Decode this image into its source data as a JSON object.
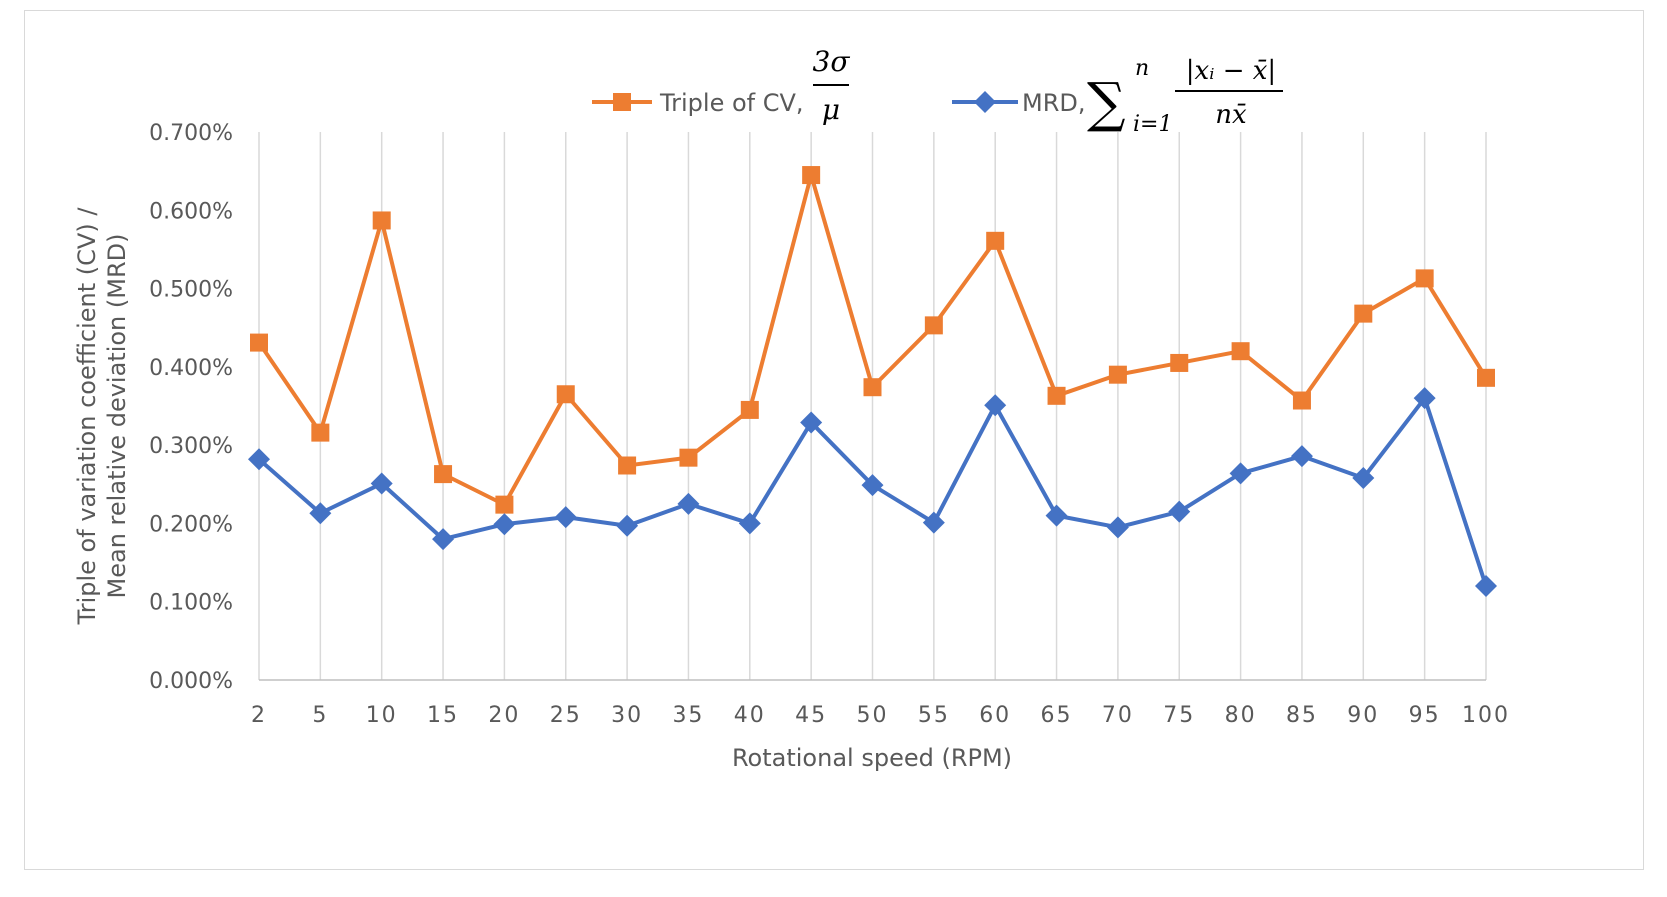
{
  "chart_data": {
    "type": "line",
    "title": "",
    "xlabel": "Rotational speed (RPM)",
    "ylabel": [
      "Triple of variation coefficient (CV) /",
      "Mean relative deviation (MRD)"
    ],
    "categories": [
      "2",
      "5",
      "10",
      "15",
      "20",
      "25",
      "30",
      "35",
      "40",
      "45",
      "50",
      "55",
      "60",
      "65",
      "70",
      "75",
      "80",
      "85",
      "90",
      "95",
      "100"
    ],
    "ylim": [
      0,
      0.7
    ],
    "ytick_labels": [
      "0.000%",
      "0.100%",
      "0.200%",
      "0.300%",
      "0.400%",
      "0.500%",
      "0.600%",
      "0.700%"
    ],
    "grid": "vertical",
    "legend_position": "top",
    "series": [
      {
        "name": "Triple of CV,",
        "formula": "3σ/μ",
        "formula_numerator": "3σ",
        "formula_denominator": "μ",
        "color": "#ED7D31",
        "marker": "square",
        "values": [
          0.431,
          0.316,
          0.587,
          0.263,
          0.224,
          0.365,
          0.274,
          0.284,
          0.345,
          0.645,
          0.374,
          0.453,
          0.561,
          0.363,
          0.39,
          0.405,
          0.42,
          0.357,
          0.468,
          0.513,
          0.386
        ]
      },
      {
        "name": "MRD,",
        "formula": "Σ_{i=1}^{n} |x_i − x̄| / (n x̄)",
        "formula_sum": "∑",
        "formula_sum_upper": "n",
        "formula_sum_lower": "i=1",
        "formula_numerator": "|xᵢ − x̄|",
        "formula_denominator": "nx̄",
        "color": "#4472C4",
        "marker": "diamond",
        "values": [
          0.282,
          0.213,
          0.251,
          0.18,
          0.199,
          0.208,
          0.197,
          0.225,
          0.2,
          0.329,
          0.249,
          0.201,
          0.351,
          0.21,
          0.195,
          0.215,
          0.264,
          0.286,
          0.258,
          0.36,
          0.12
        ]
      }
    ]
  }
}
